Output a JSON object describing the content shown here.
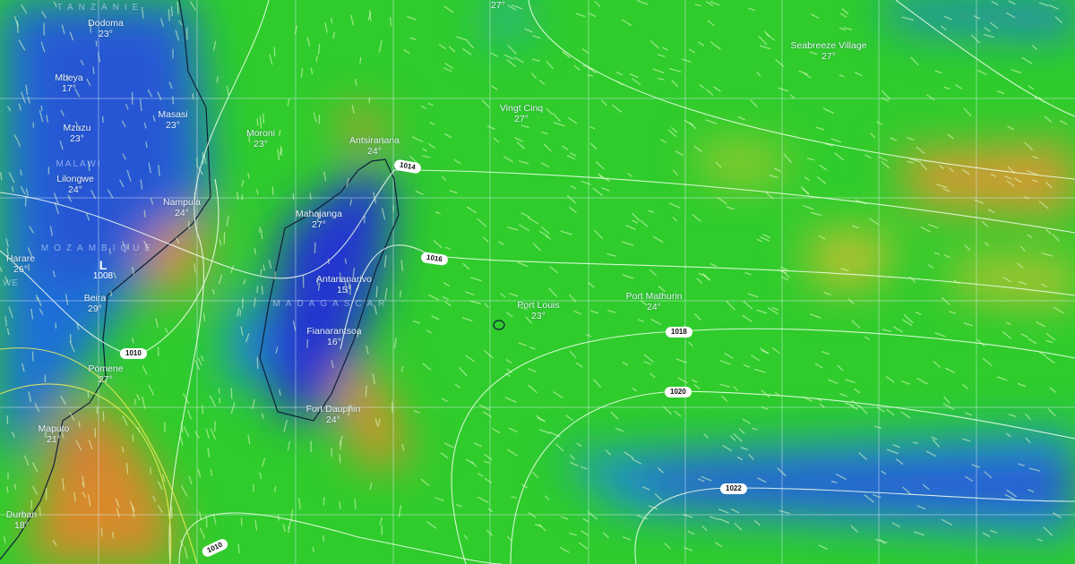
{
  "map": {
    "layer": "wind",
    "colors": {
      "calm": "#2a3fd0",
      "light": "#1e9ad8",
      "moderate": "#2fd02a",
      "fresh": "#c8c82a",
      "strong": "#d88a2a",
      "gale": "#c0405a",
      "isobar": "#ffffff"
    },
    "countries": [
      "TANZANIE",
      "MALAWI",
      "MOZAMBIQUE",
      "MADAGASCAR",
      "WE"
    ],
    "cities": [
      {
        "name": "Dodoma",
        "temp": "23°"
      },
      {
        "name": "Mbeya",
        "temp": "17°"
      },
      {
        "name": "Masasi",
        "temp": "23°"
      },
      {
        "name": "Mzuzu",
        "temp": "23°"
      },
      {
        "name": "Moroni",
        "temp": "23°"
      },
      {
        "name": "Antsiranana",
        "temp": "24°"
      },
      {
        "name": "Lilongwe",
        "temp": "24°"
      },
      {
        "name": "Nampula",
        "temp": "24°"
      },
      {
        "name": "Mahajanga",
        "temp": "27°"
      },
      {
        "name": "Harare",
        "temp": "26°"
      },
      {
        "name": "Beira",
        "temp": "29°"
      },
      {
        "name": "Antananarivo",
        "temp": "15°"
      },
      {
        "name": "Fianarantsoa",
        "temp": "16°"
      },
      {
        "name": "Pomene",
        "temp": "27°"
      },
      {
        "name": "Fort Dauphin",
        "temp": "24°"
      },
      {
        "name": "Maputo",
        "temp": "21°"
      },
      {
        "name": "Durban",
        "temp": "18°"
      },
      {
        "name": "Port Louis",
        "temp": "23°"
      },
      {
        "name": "Port Mathurin",
        "temp": "24°"
      },
      {
        "name": "Vingt Cinq",
        "temp": "27°"
      },
      {
        "name": "Seabreeze Village",
        "temp": "27°"
      },
      {
        "name": "",
        "temp": "27°"
      }
    ],
    "pressure_low": {
      "symbol": "L",
      "value": "1008"
    },
    "isobar_labels": [
      "1014",
      "1016",
      "1018",
      "1020",
      "1022",
      "1010",
      "1010"
    ]
  }
}
